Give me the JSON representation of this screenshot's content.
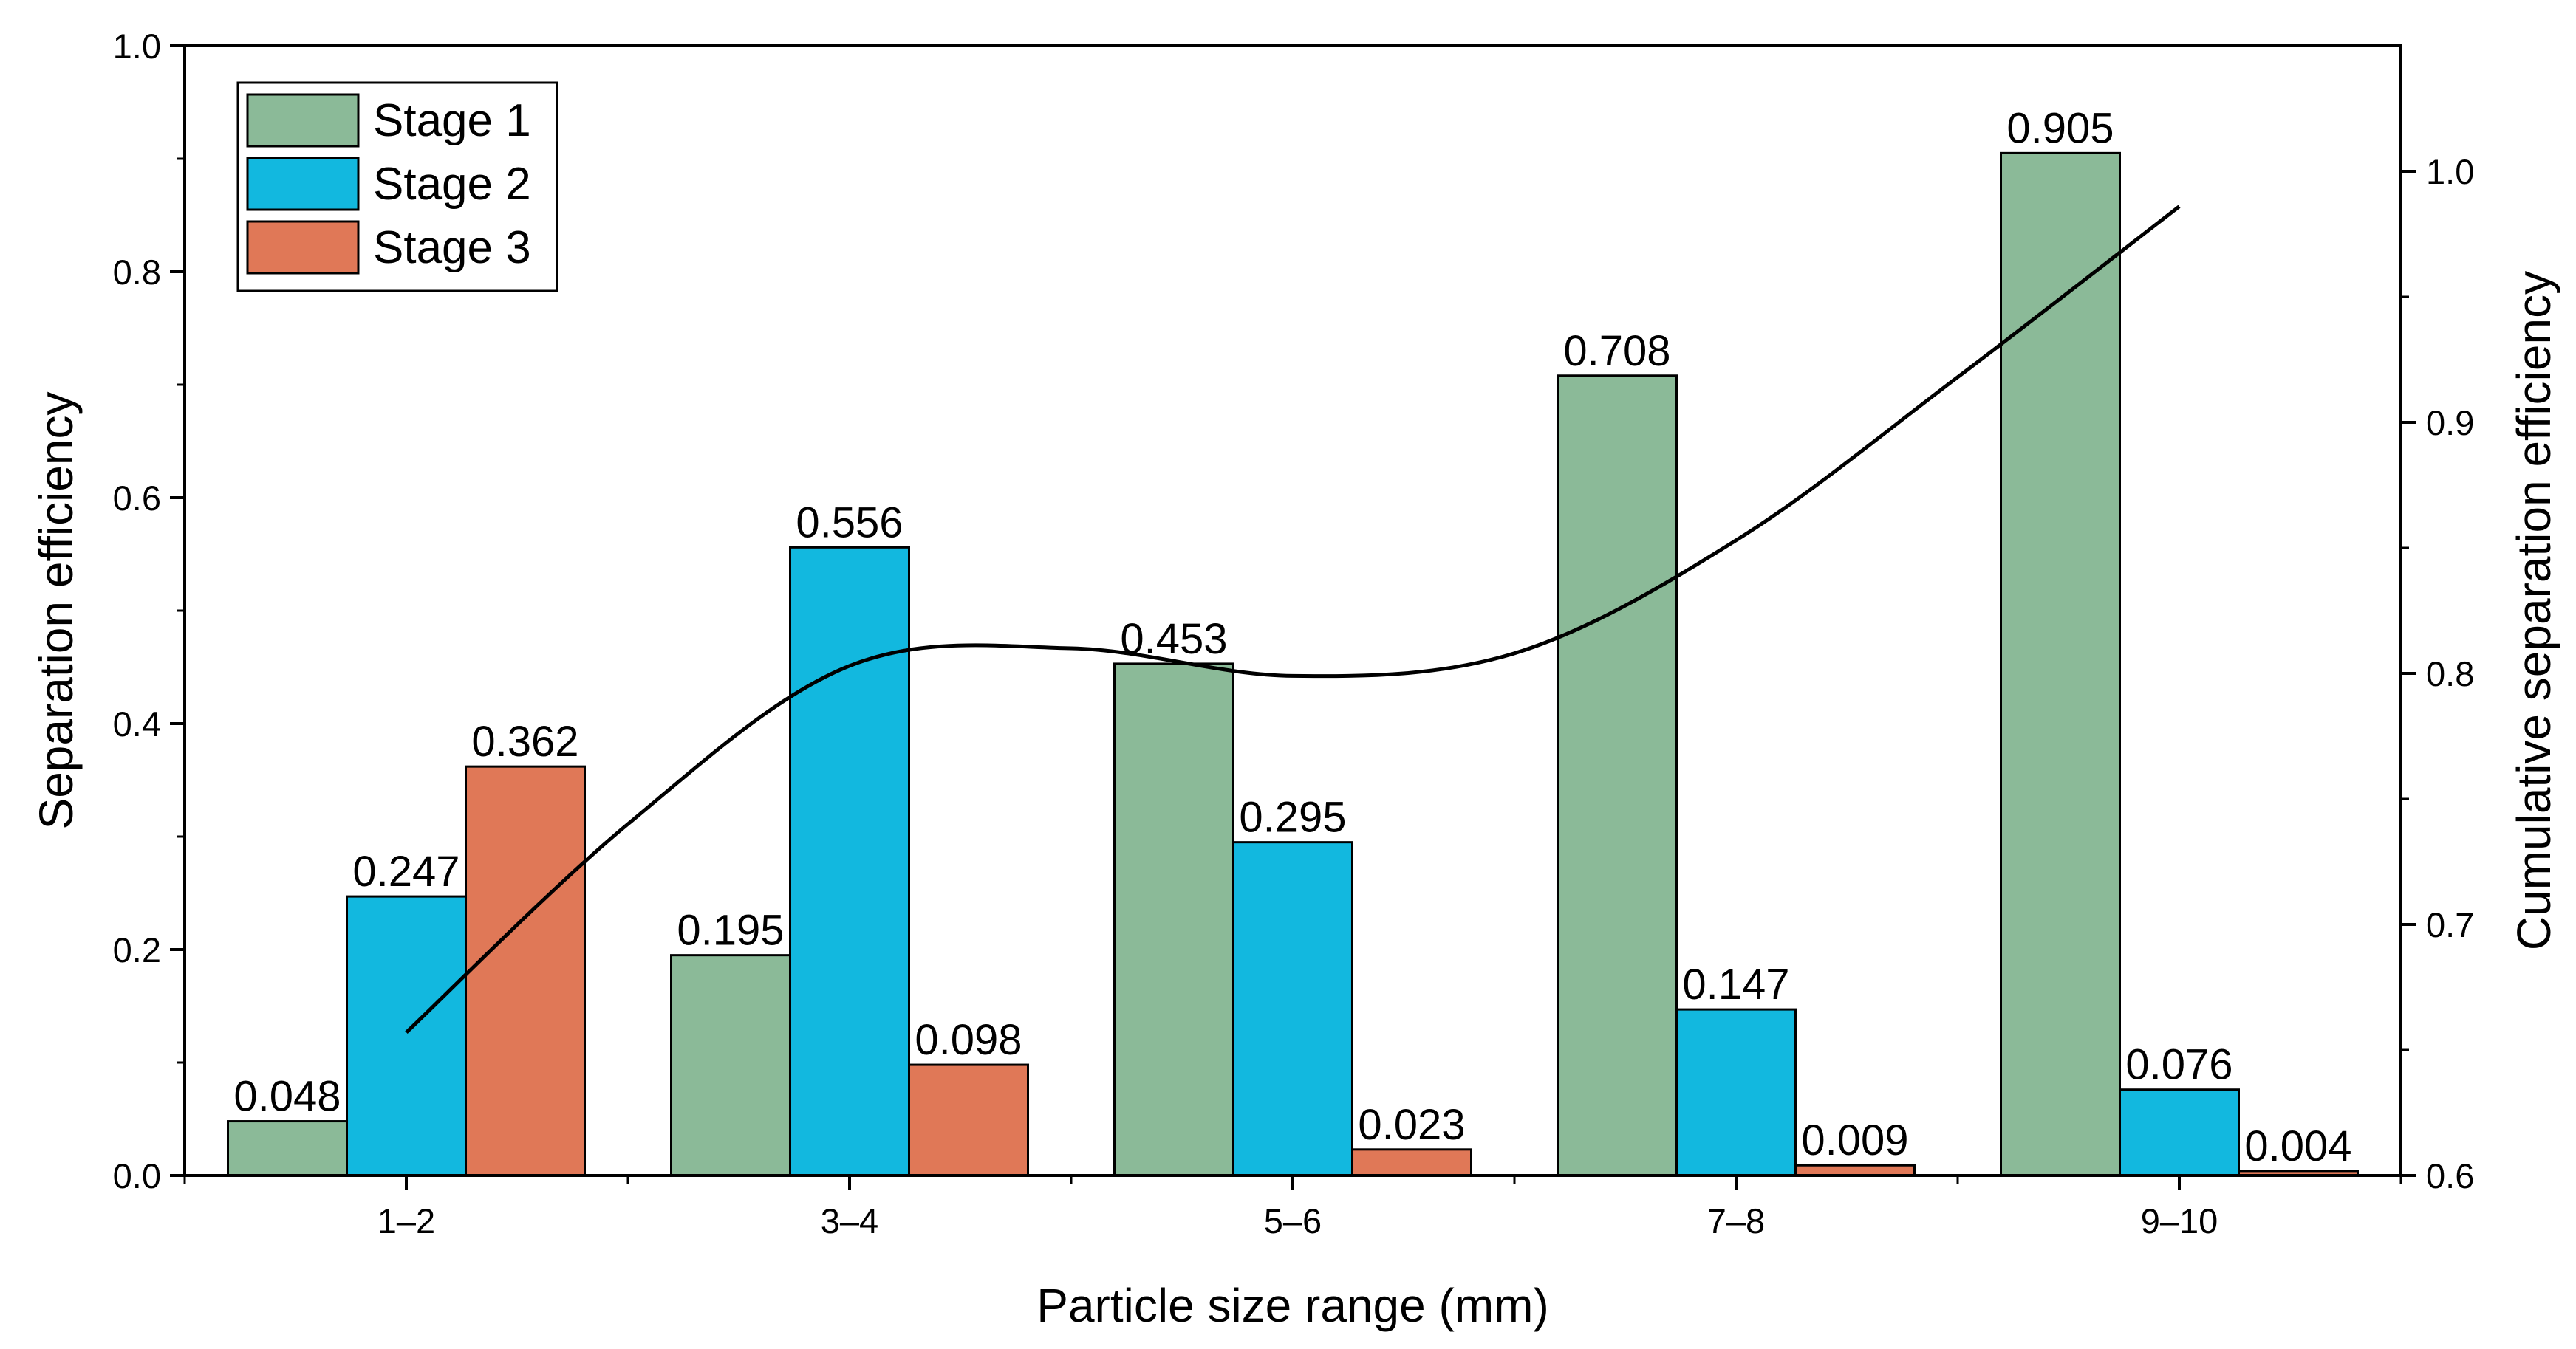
{
  "chart_data": {
    "type": "bar",
    "title": "",
    "xlabel": "Particle size range (mm)",
    "ylabel": "Separation efficiency",
    "y2label": "Cumulative separation efficiency",
    "categories": [
      "1–2",
      "3–4",
      "5–6",
      "7–8",
      "9–10"
    ],
    "ylim": [
      0.0,
      1.0
    ],
    "yticks": [
      "0.0",
      "0.2",
      "0.4",
      "0.6",
      "0.8",
      "1.0"
    ],
    "y2lim": [
      0.6,
      1.05
    ],
    "y2ticks": [
      "0.6",
      "0.7",
      "0.8",
      "0.9",
      "1.0"
    ],
    "grid": false,
    "legend_position": "top-left",
    "series": [
      {
        "name": "Stage 1",
        "color": "#8bba98",
        "values": [
          0.048,
          0.195,
          0.453,
          0.708,
          0.905
        ],
        "labels": [
          "0.048",
          "0.195",
          "0.453",
          "0.708",
          "0.905"
        ]
      },
      {
        "name": "Stage 2",
        "color": "#12b8df",
        "values": [
          0.247,
          0.556,
          0.295,
          0.147,
          0.076
        ],
        "labels": [
          "0.247",
          "0.556",
          "0.295",
          "0.147",
          "0.076"
        ]
      },
      {
        "name": "Stage 3",
        "color": "#e07857",
        "values": [
          0.362,
          0.098,
          0.023,
          0.009,
          0.004
        ],
        "labels": [
          "0.362",
          "0.098",
          "0.023",
          "0.009",
          "0.004"
        ]
      }
    ],
    "cumulative_line": {
      "name": "Cumulative separation efficiency",
      "color": "#000000",
      "axis": "right",
      "x_positions": [
        1,
        1.5,
        2,
        2.5,
        3,
        3.5,
        4,
        4.5,
        5
      ],
      "values": [
        0.657,
        0.74,
        0.803,
        0.81,
        0.799,
        0.808,
        0.853,
        0.918,
        0.986
      ]
    }
  }
}
